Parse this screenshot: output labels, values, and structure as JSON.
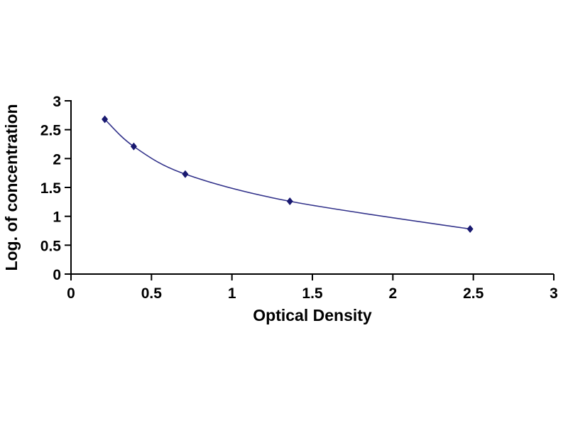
{
  "chart_data": {
    "type": "line",
    "title": "",
    "xlabel": "Optical Density",
    "ylabel": "Log. of concentration",
    "x": [
      0.21,
      0.39,
      0.71,
      1.36,
      2.48
    ],
    "y": [
      2.68,
      2.21,
      1.73,
      1.26,
      0.78
    ],
    "xlim": [
      0,
      3
    ],
    "ylim": [
      0,
      3
    ],
    "x_ticks": [
      0,
      0.5,
      1,
      1.5,
      2,
      2.5,
      3
    ],
    "y_ticks": [
      0,
      0.5,
      1,
      1.5,
      2,
      2.5,
      3
    ],
    "x_tick_labels": [
      "0",
      "0.5",
      "1",
      "1.5",
      "2",
      "2.5",
      "3"
    ],
    "y_tick_labels": [
      "0",
      "0.5",
      "1",
      "1.5",
      "2",
      "2.5",
      "3"
    ],
    "marker": "diamond",
    "line_color": "#33338B",
    "marker_color": "#191970",
    "axis_color": "#000000",
    "grid": false,
    "legend": "none",
    "background": "#ffffff"
  }
}
